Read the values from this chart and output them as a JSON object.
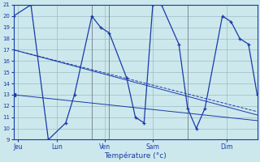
{
  "xlabel": "Température (°c)",
  "background_color": "#cce8ec",
  "line_color": "#1a3aab",
  "grid_color": "#9bbcc4",
  "ylim": [
    9,
    21
  ],
  "yticks": [
    9,
    10,
    11,
    12,
    13,
    14,
    15,
    16,
    17,
    18,
    19,
    20,
    21
  ],
  "xlim": [
    0,
    28
  ],
  "day_labels": [
    "Jeu",
    "Lun",
    "Ven",
    "Sam",
    "Dim"
  ],
  "day_positions": [
    0.5,
    5,
    10.5,
    16,
    24.5
  ],
  "vline_positions": [
    9,
    11,
    20,
    28
  ],
  "line_wavy": {
    "x": [
      0,
      2,
      4,
      6,
      7,
      9,
      10,
      11,
      13,
      14,
      15,
      16,
      17,
      19,
      20,
      21,
      22,
      24,
      25,
      26,
      27,
      28
    ],
    "y": [
      20,
      21,
      9,
      10.5,
      13,
      20,
      19,
      18.5,
      14.5,
      11,
      10.5,
      21,
      21,
      17.5,
      11.8,
      10,
      11.8,
      20,
      19.5,
      18,
      17.5,
      13
    ]
  },
  "line_flat_arrow": {
    "x": [
      0,
      28
    ],
    "y": [
      13,
      10.7
    ]
  },
  "line_dashed": {
    "x": [
      0,
      28
    ],
    "y": [
      17,
      11.5
    ]
  },
  "line_solid": {
    "x": [
      0,
      28
    ],
    "y": [
      17,
      11.2
    ]
  }
}
